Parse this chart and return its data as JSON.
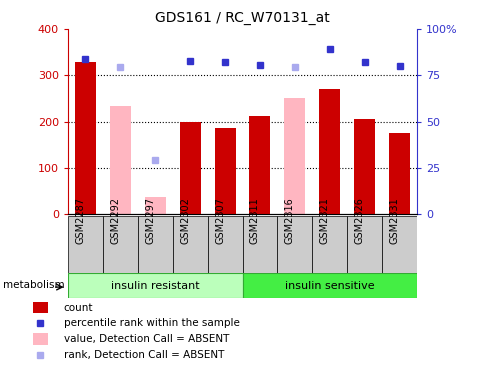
{
  "title": "GDS161 / RC_W70131_at",
  "samples": [
    "GSM2287",
    "GSM2292",
    "GSM2297",
    "GSM2302",
    "GSM2307",
    "GSM2311",
    "GSM2316",
    "GSM2321",
    "GSM2326",
    "GSM2331"
  ],
  "count_values": [
    330,
    0,
    0,
    200,
    187,
    212,
    0,
    270,
    205,
    175
  ],
  "count_absent_values": [
    0,
    235,
    38,
    0,
    0,
    0,
    252,
    0,
    0,
    0
  ],
  "rank_values": [
    335,
    0,
    0,
    332,
    330,
    322,
    0,
    358,
    330,
    320
  ],
  "rank_absent_values": [
    0,
    318,
    118,
    0,
    0,
    0,
    318,
    0,
    0,
    0
  ],
  "ylim_left": [
    0,
    400
  ],
  "ylim_right": [
    0,
    100
  ],
  "yticks_left": [
    0,
    100,
    200,
    300,
    400
  ],
  "yticks_right": [
    0,
    25,
    50,
    75,
    100
  ],
  "ytick_labels_right": [
    "0",
    "25",
    "50",
    "75",
    "100%"
  ],
  "bar_color": "#cc0000",
  "bar_absent_color": "#ffb6c1",
  "rank_color": "#3333cc",
  "rank_absent_color": "#aaaaee",
  "background_color": "#ffffff",
  "plot_bg_color": "#ffffff",
  "group_resistant_color": "#bbffbb",
  "group_sensitive_color": "#44ee44",
  "sample_box_color": "#cccccc",
  "legend_items": [
    {
      "label": "count",
      "type": "bar",
      "color": "#cc0000"
    },
    {
      "label": "percentile rank within the sample",
      "type": "square",
      "color": "#3333cc"
    },
    {
      "label": "value, Detection Call = ABSENT",
      "type": "bar",
      "color": "#ffb6c1"
    },
    {
      "label": "rank, Detection Call = ABSENT",
      "type": "square",
      "color": "#aaaaee"
    }
  ]
}
